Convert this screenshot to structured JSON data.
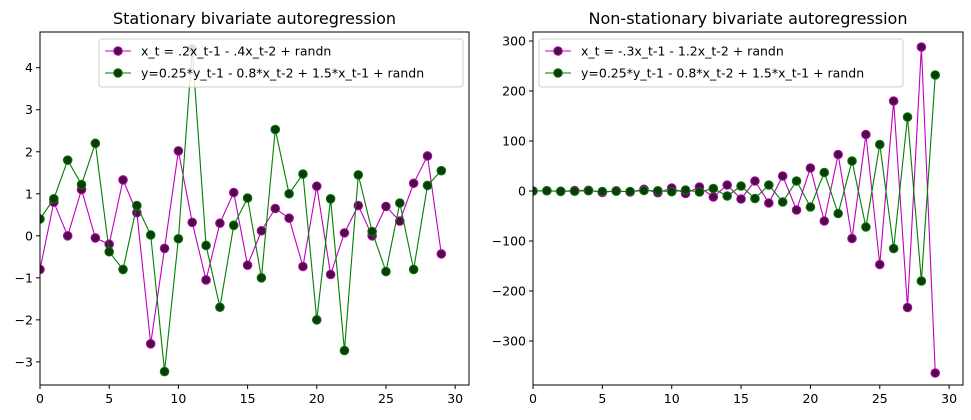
{
  "chart_data": [
    {
      "type": "line",
      "title": "Stationary bivariate autoregression",
      "xlabel": "",
      "ylabel": "",
      "xlim": [
        0,
        31
      ],
      "ylim": [
        -3.55,
        4.85
      ],
      "xticks": [
        0,
        5,
        10,
        15,
        20,
        25,
        30
      ],
      "yticks": [
        -3,
        -2,
        -1,
        0,
        1,
        2,
        3,
        4
      ],
      "ytick_labels": [
        "−3",
        "−2",
        "−1",
        "0",
        "1",
        "2",
        "3",
        "4"
      ],
      "grid": false,
      "legend_position": "upper-right",
      "x": [
        0,
        1,
        2,
        3,
        4,
        5,
        6,
        7,
        8,
        9,
        10,
        11,
        12,
        13,
        14,
        15,
        16,
        17,
        18,
        19,
        20,
        21,
        22,
        23,
        24,
        25,
        26,
        27,
        28,
        29
      ],
      "series": [
        {
          "name": "x_t = .2x_t-1 - .4x_t-2 + randn",
          "color": "#bf00bf",
          "marker_face": "#4b1040",
          "values": [
            -0.8,
            0.8,
            0.0,
            1.1,
            -0.05,
            -0.2,
            1.33,
            0.55,
            -2.57,
            -0.3,
            2.02,
            0.32,
            -1.05,
            0.3,
            1.03,
            -0.7,
            0.12,
            0.65,
            0.42,
            -0.73,
            1.18,
            -0.92,
            0.07,
            0.72,
            0.0,
            0.7,
            0.35,
            1.25,
            1.9,
            -0.43
          ]
        },
        {
          "name": "y=0.25*y_t-1 - 0.8*x_t-2 + 1.5*x_t-1 + randn",
          "color": "#007f00",
          "marker_face": "#0e3a0e",
          "values": [
            0.4,
            0.88,
            1.8,
            1.22,
            2.2,
            -0.38,
            -0.8,
            0.72,
            0.02,
            -3.23,
            -0.07,
            4.45,
            -0.23,
            -1.7,
            0.25,
            0.9,
            -1.0,
            2.53,
            1.0,
            1.47,
            -2.0,
            0.88,
            -2.73,
            1.45,
            0.1,
            -0.85,
            0.78,
            -0.8,
            1.2,
            1.55
          ]
        }
      ]
    },
    {
      "type": "line",
      "title": "Non-stationary bivariate autoregression",
      "xlabel": "",
      "ylabel": "",
      "xlim": [
        0,
        31
      ],
      "ylim": [
        -388,
        318
      ],
      "xticks": [
        0,
        5,
        10,
        15,
        20,
        25,
        30
      ],
      "yticks": [
        -300,
        -200,
        -100,
        0,
        100,
        200,
        300
      ],
      "ytick_labels": [
        "−300",
        "−200",
        "−100",
        "0",
        "100",
        "200",
        "300"
      ],
      "grid": false,
      "legend_position": "upper-left",
      "x": [
        0,
        1,
        2,
        3,
        4,
        5,
        6,
        7,
        8,
        9,
        10,
        11,
        12,
        13,
        14,
        15,
        16,
        17,
        18,
        19,
        20,
        21,
        22,
        23,
        24,
        25,
        26,
        27,
        28,
        29
      ],
      "series": [
        {
          "name": "x_t = -.3x_t-1 - 1.2x_t-2 + randn",
          "color": "#bf00bf",
          "marker_face": "#4b1040",
          "values": [
            0,
            0.5,
            -0.8,
            0.9,
            1.5,
            -3.0,
            0.5,
            -2.0,
            3.5,
            -3.5,
            6.0,
            -5.0,
            8.0,
            -12.0,
            12.0,
            -16.0,
            20.0,
            -24.0,
            30.0,
            -38.0,
            46.0,
            -60.0,
            73.0,
            -95.0,
            113.0,
            -147.0,
            180.0,
            -233.0,
            288.0,
            -364.0
          ]
        },
        {
          "name": "y=0.25*y_t-1 - 0.8*x_t-2 + 1.5*x_t-1 + randn",
          "color": "#007f00",
          "marker_face": "#0e3a0e",
          "values": [
            0,
            0.5,
            -0.5,
            -0.5,
            0.5,
            -1.0,
            -0.5,
            -1.0,
            1.0,
            0.5,
            -1.5,
            2.0,
            -2.0,
            5.0,
            -10.0,
            10.0,
            -15.0,
            12.0,
            -22.0,
            20.0,
            -32.0,
            37.0,
            -45.0,
            60.0,
            -72.0,
            93.0,
            -115.0,
            148.0,
            -180.0,
            232.0
          ]
        }
      ]
    }
  ]
}
